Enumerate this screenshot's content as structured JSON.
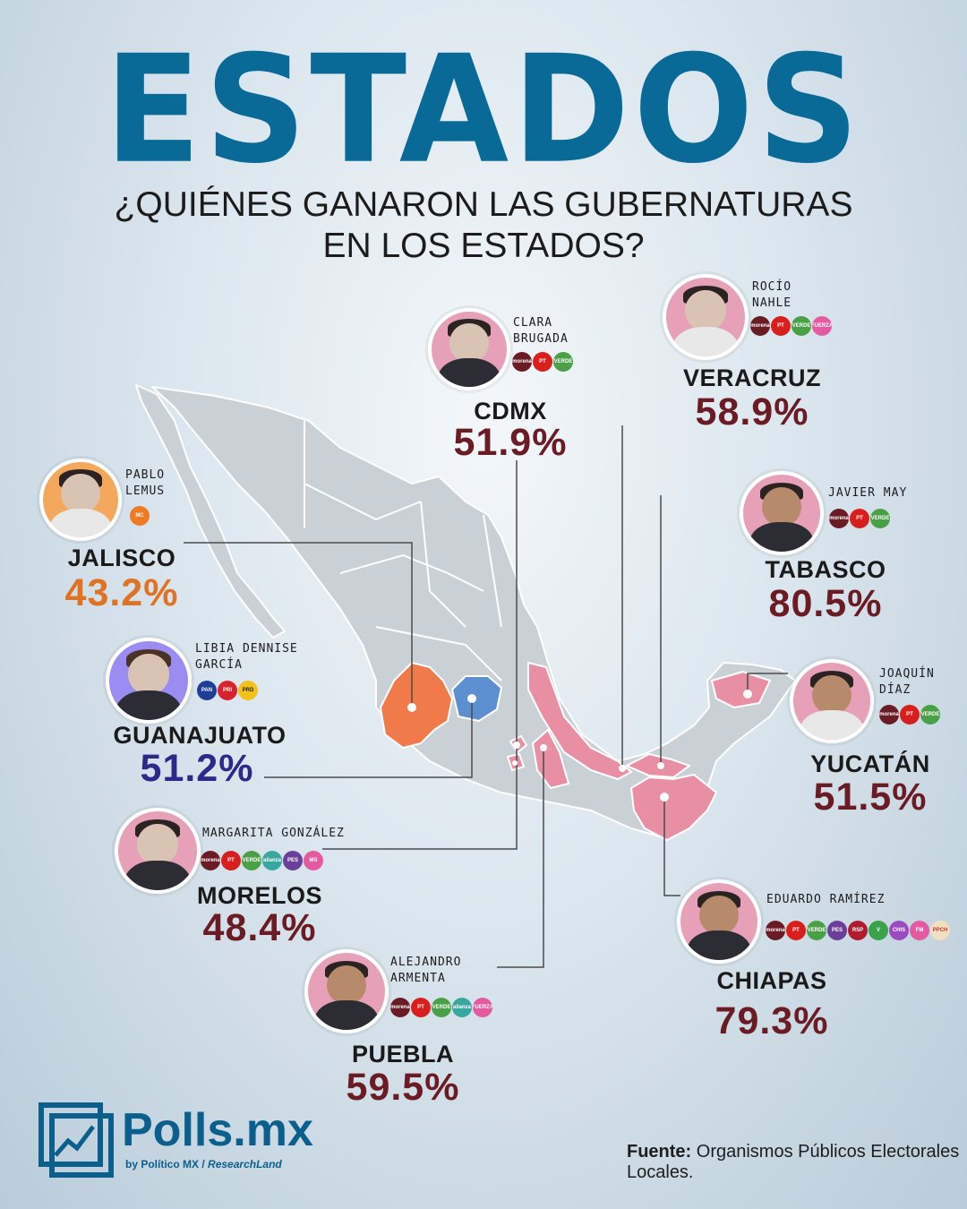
{
  "title": "ESTADOS",
  "subtitle_line1": "¿QUIÉNES GANARON LAS GUBERNATURAS",
  "subtitle_line2": "EN LOS ESTADOS?",
  "colors": {
    "title": "#0a6a97",
    "morena": "#6b1b24",
    "jalisco_mc": "#e07224",
    "guanajuato_pan": "#2a2a8a",
    "map_base": "#c9d0d6",
    "map_morena": "#e98fa3",
    "map_mc": "#f07a4a",
    "map_pan": "#5b8fd0"
  },
  "winners": [
    {
      "state": "CDMX",
      "candidate_l1": "CLARA",
      "candidate_l2": "BRUGADA",
      "percent": "51.9%",
      "parties": [
        "morena",
        "PT",
        "VERDE"
      ]
    },
    {
      "state": "VERACRUZ",
      "candidate_l1": "ROCÍO",
      "candidate_l2": "NAHLE",
      "percent": "58.9%",
      "parties": [
        "morena",
        "PT",
        "VERDE",
        "FUERZA MÉXICO"
      ]
    },
    {
      "state": "JALISCO",
      "candidate_l1": "PABLO",
      "candidate_l2": "LEMUS",
      "percent": "43.2%",
      "parties": [
        "MC"
      ]
    },
    {
      "state": "TABASCO",
      "candidate_l1": "JAVIER MAY",
      "candidate_l2": "",
      "percent": "80.5%",
      "parties": [
        "morena",
        "PT",
        "VERDE"
      ]
    },
    {
      "state": "GUANAJUATO",
      "candidate_l1": "LIBIA DENNISE",
      "candidate_l2": "GARCÍA",
      "percent": "51.2%",
      "parties": [
        "PAN",
        "PRI",
        "PRD"
      ]
    },
    {
      "state": "YUCATÁN",
      "candidate_l1": "JOAQUÍN",
      "candidate_l2": "DÍAZ",
      "percent": "51.5%",
      "parties": [
        "morena",
        "PT",
        "VERDE"
      ]
    },
    {
      "state": "MORELOS",
      "candidate_l1": "MARGARITA GONZÁLEZ",
      "candidate_l2": "",
      "percent": "48.4%",
      "parties": [
        "morena",
        "PT",
        "VERDE",
        "alianza",
        "PES",
        "MS"
      ]
    },
    {
      "state": "CHIAPAS",
      "candidate_l1": "EDUARDO RAMÍREZ",
      "candidate_l2": "",
      "percent": "79.3%",
      "parties": [
        "morena",
        "PT",
        "VERDE",
        "PES",
        "RSP",
        "VERDE2",
        "CHIAPAS",
        "FUERZA MÉXICO",
        "PPCH"
      ]
    },
    {
      "state": "PUEBLA",
      "candidate_l1": "ALEJANDRO",
      "candidate_l2": "ARMENTA",
      "percent": "59.5%",
      "parties": [
        "morena",
        "PT",
        "VERDE",
        "alianza",
        "FUERZA MÉXICO"
      ]
    }
  ],
  "logo": {
    "name": "Polls.mx",
    "sub_by": "by Político MX",
    "sub_sep": "/",
    "sub_partner": "ResearchLand"
  },
  "source": {
    "label": "Fuente:",
    "text": " Organismos Públicos Electorales Locales."
  }
}
